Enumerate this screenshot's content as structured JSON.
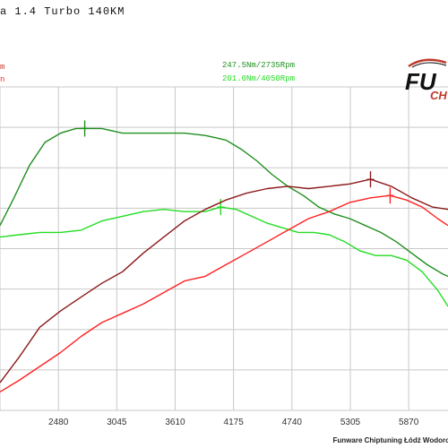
{
  "title": "a 1.4 Turbo 140KM",
  "legend": {
    "hp_peak": "m",
    "hp_ref_peak": "n",
    "nm_peak": "247.5Nm/2735Rpm",
    "nm_ref_peak": "201.0Nm/4050Rpm"
  },
  "logo": {
    "line1": "FU",
    "line2": "CH"
  },
  "footer": "Funware Chiptuning Łódź Wodoro",
  "colors": {
    "torque_tuned": "#1f8f1f",
    "torque_stock": "#22dd22",
    "power_tuned": "#8b1a1a",
    "power_stock": "#ff2020",
    "grid": "#c8c8c8"
  },
  "chart_data": {
    "type": "line",
    "xlabel": "",
    "ylabel": "",
    "x_ticks": [
      2480,
      3045,
      3610,
      4175,
      4740,
      5305,
      5870
    ],
    "xlim": [
      1915,
      6250
    ],
    "ylim": [
      0,
      14
    ],
    "grid": true,
    "series": [
      {
        "name": "247.5Nm/2735Rpm",
        "marker_x": 2735,
        "marker_y": 12.2,
        "x": [
          1915,
          2050,
          2200,
          2350,
          2500,
          2650,
          2735,
          2900,
          3100,
          3300,
          3500,
          3700,
          3900,
          4000,
          4100,
          4250,
          4400,
          4550,
          4700,
          4850,
          5000,
          5150,
          5300,
          5450,
          5600,
          5750,
          5900,
          6050,
          6200,
          6250
        ],
        "y": [
          8.0,
          9.2,
          10.6,
          11.6,
          12.0,
          12.2,
          12.2,
          12.2,
          12.0,
          12.0,
          12.0,
          12.0,
          11.9,
          11.8,
          11.7,
          11.3,
          10.8,
          10.2,
          9.7,
          9.3,
          8.8,
          8.5,
          8.3,
          8.0,
          7.7,
          7.3,
          6.8,
          6.3,
          5.9,
          5.8
        ]
      },
      {
        "name": "201.0Nm/4050Rpm",
        "marker_x": 4050,
        "marker_y": 8.8,
        "x": [
          1915,
          2100,
          2300,
          2500,
          2700,
          2900,
          3100,
          3300,
          3500,
          3700,
          3900,
          4050,
          4200,
          4350,
          4500,
          4650,
          4800,
          4950,
          5100,
          5250,
          5400,
          5550,
          5700,
          5850,
          6000,
          6150,
          6250
        ],
        "y": [
          7.5,
          7.6,
          7.7,
          7.7,
          7.8,
          8.2,
          8.4,
          8.6,
          8.7,
          8.6,
          8.6,
          8.8,
          8.7,
          8.4,
          8.1,
          7.9,
          7.7,
          7.7,
          7.6,
          7.3,
          6.9,
          6.7,
          6.7,
          6.5,
          6.0,
          5.2,
          4.5
        ]
      },
      {
        "marker_x": 5500,
        "marker_y": 10.0,
        "x": [
          1915,
          2100,
          2300,
          2500,
          2700,
          2900,
          3100,
          3300,
          3500,
          3700,
          3900,
          4100,
          4300,
          4500,
          4700,
          4900,
          5100,
          5300,
          5500,
          5700,
          5900,
          6100,
          6250
        ],
        "y": [
          1.2,
          2.3,
          3.6,
          4.3,
          4.9,
          5.5,
          6.0,
          6.8,
          7.5,
          8.2,
          8.7,
          9.1,
          9.4,
          9.6,
          9.7,
          9.6,
          9.7,
          9.8,
          10.0,
          9.7,
          9.2,
          8.8,
          8.7
        ]
      },
      {
        "marker_x": 5690,
        "marker_y": 9.3,
        "x": [
          1915,
          2100,
          2300,
          2500,
          2700,
          2900,
          3100,
          3300,
          3500,
          3700,
          3900,
          4100,
          4300,
          4500,
          4700,
          4900,
          5100,
          5300,
          5500,
          5690,
          5850,
          6000,
          6150,
          6250
        ],
        "y": [
          0.8,
          1.3,
          1.9,
          2.5,
          3.2,
          3.8,
          4.2,
          4.6,
          5.1,
          5.6,
          5.8,
          6.3,
          6.8,
          7.3,
          7.8,
          8.3,
          8.6,
          9.0,
          9.2,
          9.3,
          9.1,
          8.8,
          8.3,
          8.0
        ]
      }
    ]
  }
}
